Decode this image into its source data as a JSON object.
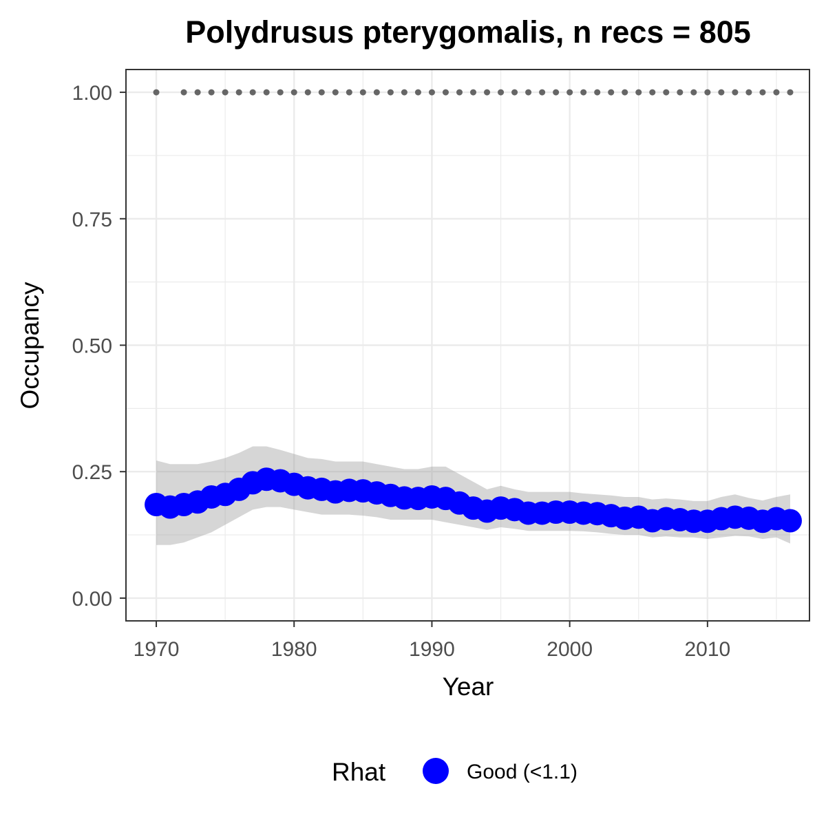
{
  "chart_data": {
    "type": "line",
    "title": "Polydrusus pterygomalis, n recs = 805",
    "xlabel": "Year",
    "ylabel": "Occupancy",
    "xlim": [
      1967.8,
      2017.4
    ],
    "ylim": [
      -0.045,
      1.045
    ],
    "x_ticks": [
      1970,
      1980,
      1990,
      2000,
      2010
    ],
    "x_tick_labels": [
      "1970",
      "1980",
      "1990",
      "2000",
      "2010"
    ],
    "y_ticks": [
      0,
      0.25,
      0.5,
      0.75,
      1.0
    ],
    "y_tick_labels": [
      "0.00",
      "0.25",
      "0.50",
      "0.75",
      "1.00"
    ],
    "grid": true,
    "colors": {
      "points": "#0000ff",
      "ribbon": "#999999",
      "records": "#666666",
      "panel_border": "#333333",
      "grid": "#ebebeb"
    },
    "legend": {
      "title": "Rhat",
      "position": "bottom",
      "entries": [
        {
          "label": "Good (<1.1)",
          "color": "#0000ff"
        }
      ]
    },
    "series": [
      {
        "name": "Good (<1.1)",
        "x": [
          1970,
          1971,
          1972,
          1973,
          1974,
          1975,
          1976,
          1977,
          1978,
          1979,
          1980,
          1981,
          1982,
          1983,
          1984,
          1985,
          1986,
          1987,
          1988,
          1989,
          1990,
          1991,
          1992,
          1993,
          1994,
          1995,
          1996,
          1997,
          1998,
          1999,
          2000,
          2001,
          2002,
          2003,
          2004,
          2005,
          2006,
          2007,
          2008,
          2009,
          2010,
          2011,
          2012,
          2013,
          2014,
          2015,
          2016
        ],
        "y": [
          0.185,
          0.18,
          0.185,
          0.19,
          0.2,
          0.205,
          0.215,
          0.228,
          0.235,
          0.232,
          0.225,
          0.218,
          0.215,
          0.21,
          0.213,
          0.212,
          0.208,
          0.203,
          0.198,
          0.197,
          0.2,
          0.197,
          0.188,
          0.178,
          0.172,
          0.178,
          0.175,
          0.168,
          0.168,
          0.17,
          0.17,
          0.168,
          0.167,
          0.163,
          0.158,
          0.16,
          0.153,
          0.157,
          0.155,
          0.152,
          0.152,
          0.157,
          0.16,
          0.158,
          0.152,
          0.157,
          0.153
        ],
        "lower": [
          0.105,
          0.105,
          0.11,
          0.12,
          0.13,
          0.145,
          0.16,
          0.175,
          0.18,
          0.18,
          0.175,
          0.17,
          0.165,
          0.165,
          0.165,
          0.163,
          0.16,
          0.155,
          0.155,
          0.155,
          0.155,
          0.15,
          0.145,
          0.14,
          0.135,
          0.14,
          0.137,
          0.133,
          0.133,
          0.133,
          0.133,
          0.132,
          0.13,
          0.127,
          0.125,
          0.125,
          0.12,
          0.122,
          0.12,
          0.12,
          0.117,
          0.12,
          0.123,
          0.122,
          0.117,
          0.12,
          0.108
        ],
        "upper": [
          0.272,
          0.265,
          0.265,
          0.265,
          0.27,
          0.277,
          0.287,
          0.3,
          0.3,
          0.293,
          0.285,
          0.277,
          0.275,
          0.27,
          0.27,
          0.27,
          0.265,
          0.26,
          0.255,
          0.255,
          0.26,
          0.26,
          0.245,
          0.23,
          0.215,
          0.222,
          0.215,
          0.21,
          0.21,
          0.21,
          0.21,
          0.207,
          0.205,
          0.203,
          0.2,
          0.2,
          0.195,
          0.197,
          0.195,
          0.192,
          0.192,
          0.2,
          0.205,
          0.198,
          0.193,
          0.2,
          0.205
        ]
      },
      {
        "name": "",
        "x": [
          1970,
          1972,
          1973,
          1974,
          1975,
          1976,
          1977,
          1978,
          1979,
          1980,
          1981,
          1982,
          1983,
          1984,
          1985,
          1986,
          1987,
          1988,
          1989,
          1990,
          1991,
          1992,
          1993,
          1994,
          1995,
          1996,
          1997,
          1998,
          1999,
          2000,
          2001,
          2002,
          2003,
          2004,
          2005,
          2006,
          2007,
          2008,
          2009,
          2010,
          2011,
          2012,
          2013,
          2014,
          2015,
          2016
        ],
        "y": [
          1,
          1,
          1,
          1,
          1,
          1,
          1,
          1,
          1,
          1,
          1,
          1,
          1,
          1,
          1,
          1,
          1,
          1,
          1,
          1,
          1,
          1,
          1,
          1,
          1,
          1,
          1,
          1,
          1,
          1,
          1,
          1,
          1,
          1,
          1,
          1,
          1,
          1,
          1,
          1,
          1,
          1,
          1,
          1,
          1,
          1
        ]
      }
    ]
  }
}
